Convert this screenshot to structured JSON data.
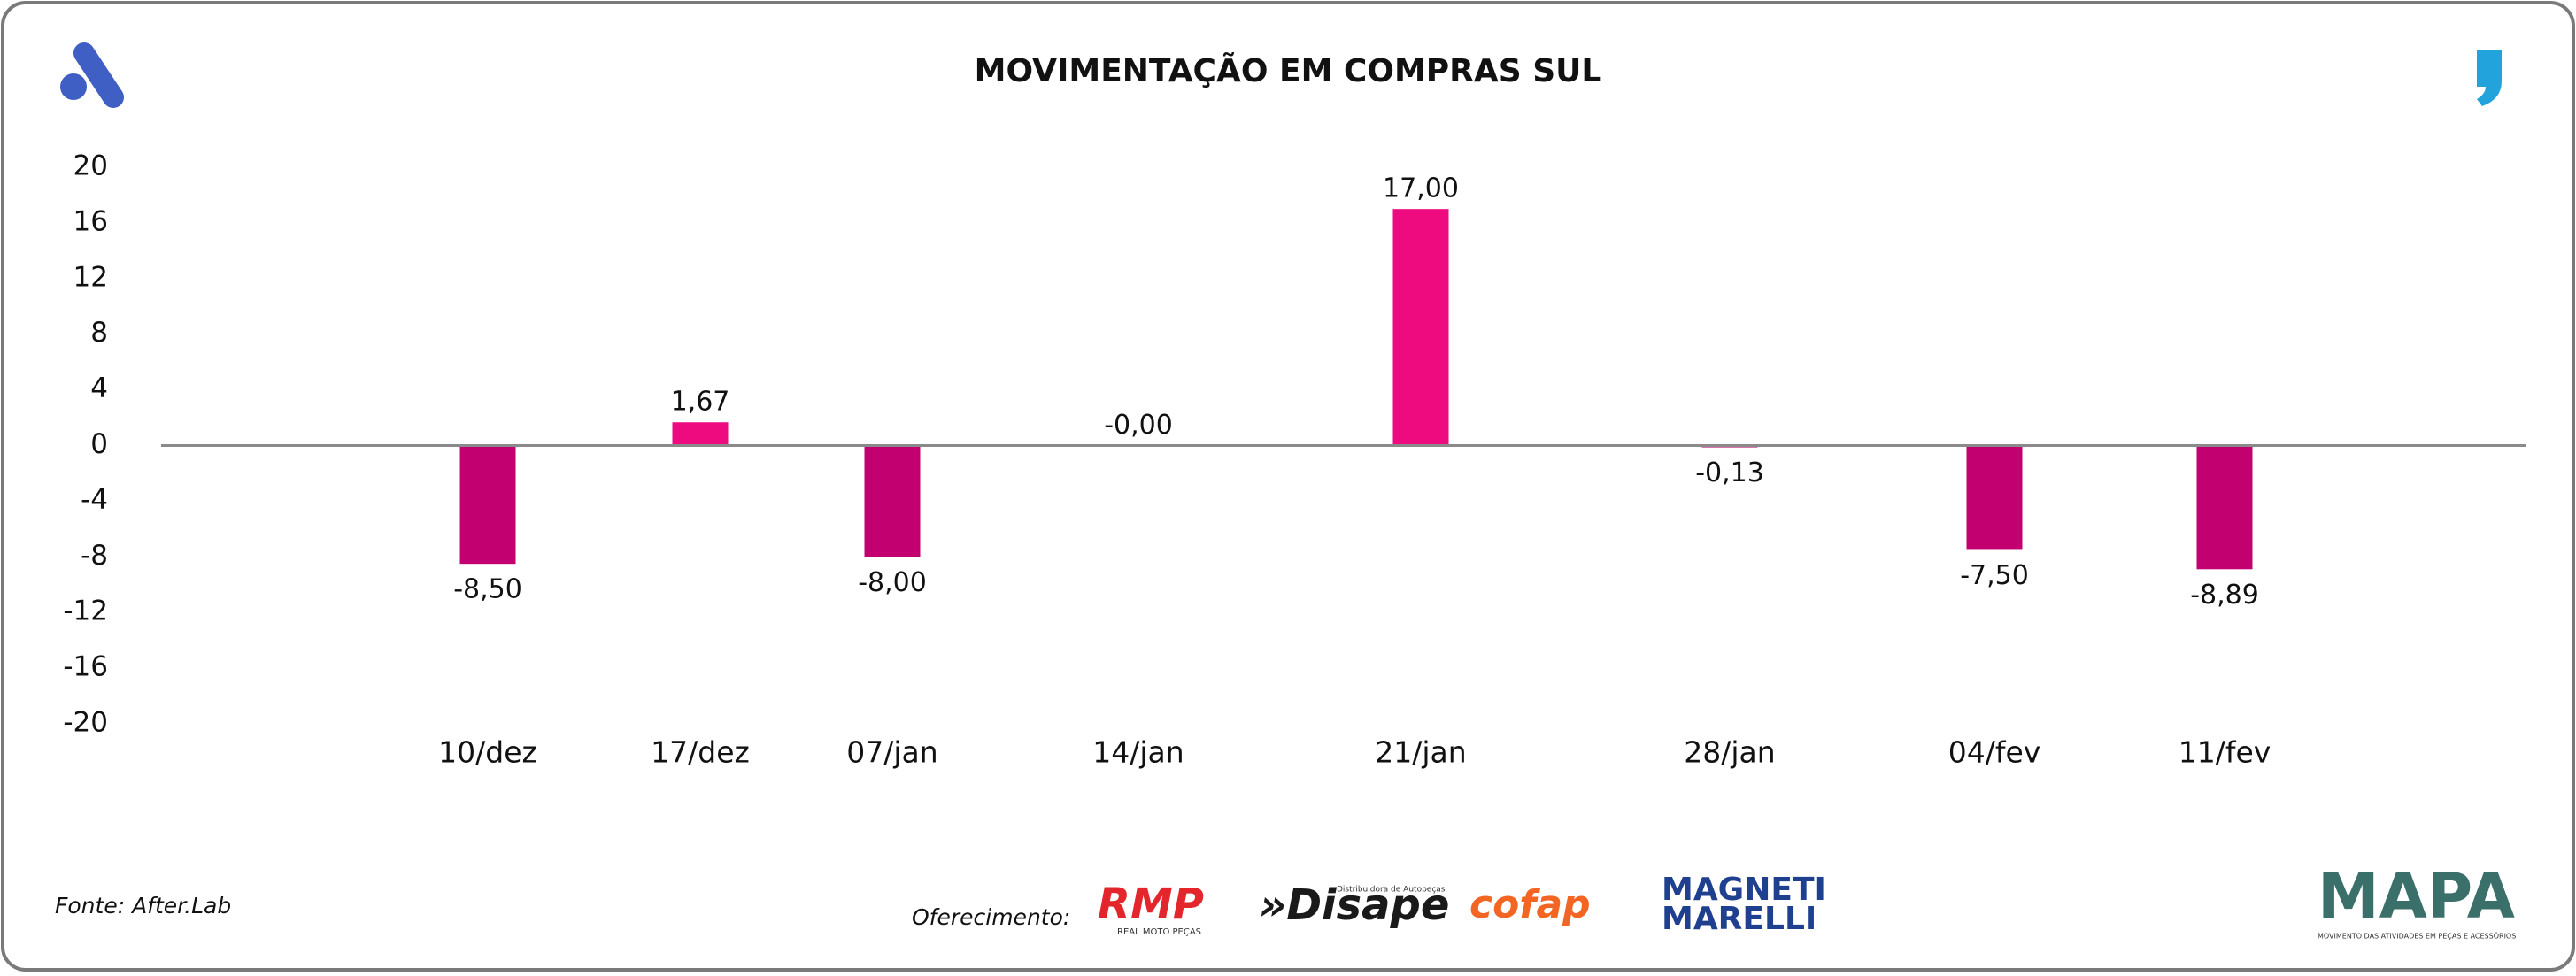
{
  "chart_data": {
    "type": "bar",
    "title": "MOVIMENTAÇÃO EM COMPRAS SUL",
    "categories": [
      "10/dez",
      "17/dez",
      "07/jan",
      "14/jan",
      "21/jan",
      "28/jan",
      "04/fev",
      "11/fev"
    ],
    "values": [
      -8.5,
      1.67,
      -8,
      0,
      17,
      -0.13,
      -7.5,
      -8.89
    ],
    "value_labels": [
      "-8,50",
      "1,67",
      "-8,00",
      "-0,00",
      "17,00",
      "-0,13",
      "-7,50",
      "-8,89"
    ],
    "colors": {
      "positive": "#ee0a7f",
      "negative": "#c2006f"
    },
    "ylim": [
      -20,
      20
    ],
    "yticks": [
      -20,
      -16,
      -12,
      -8,
      -4,
      0,
      4,
      8,
      12,
      16,
      20
    ],
    "grid": false
  },
  "footer": {
    "source": "Fonte: After.Lab",
    "sponsor_label": "Oferecimento:",
    "sponsors": [
      "RMP",
      "REAL MOTO PEÇAS",
      "»Disape",
      "Distribuidora de Autopeças",
      "cofap",
      "MAGNETI",
      "MARELLI"
    ],
    "brand": "MAPA",
    "brand_subtitle": "MOVIMENTO DAS ATIVIDADES EM PEÇAS E ACESSÓRIOS"
  }
}
